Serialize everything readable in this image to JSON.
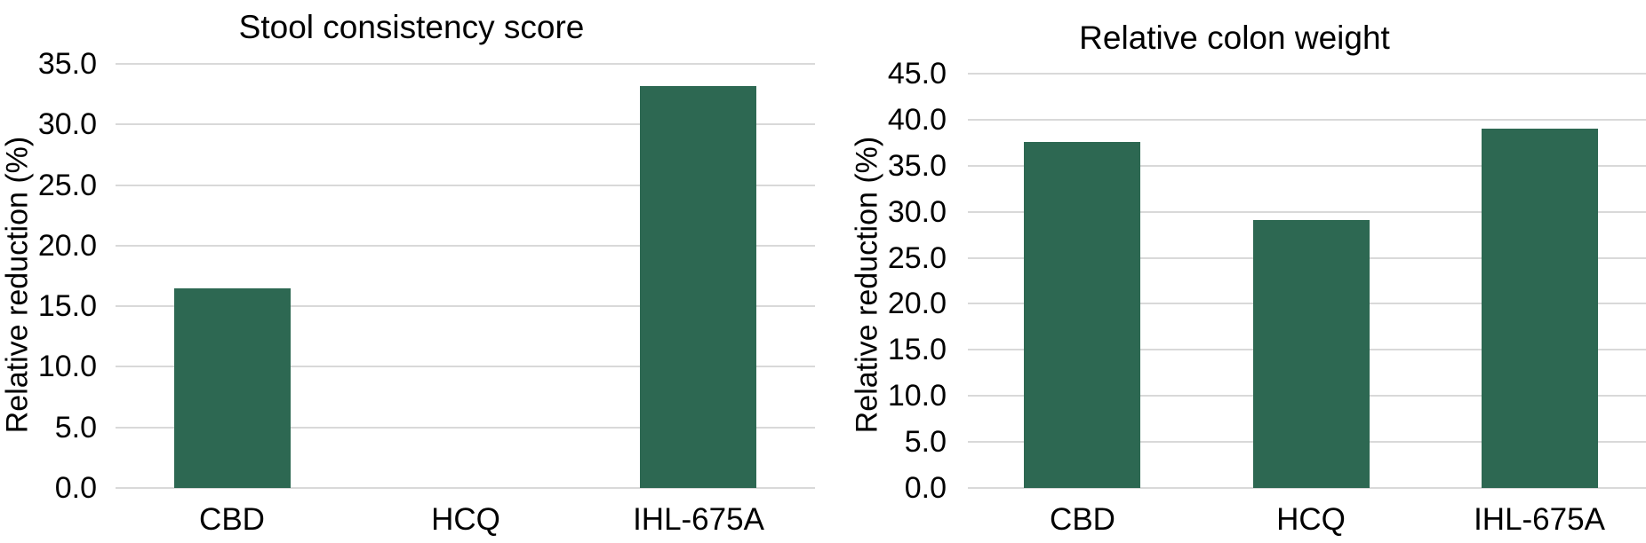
{
  "figure": {
    "background_color": "#ffffff",
    "bar_color": "#2d6852",
    "gridline_color": "#d9d9d9",
    "text_color": "#000000"
  },
  "chart_data": [
    {
      "type": "bar",
      "title": "Stool consistency score",
      "ylabel": "Relative reduction (%)",
      "xlabel": "",
      "categories": [
        "CBD",
        "HCQ",
        "IHL-675A"
      ],
      "values": [
        16.5,
        0.0,
        33.2
      ],
      "ylim": [
        0,
        35
      ],
      "ytick_step": 5,
      "ytick_decimals": 1,
      "grid": "horizontal-only",
      "legend": "none"
    },
    {
      "type": "bar",
      "title": "Relative colon weight",
      "ylabel": "Relative reduction (%)",
      "xlabel": "",
      "categories": [
        "CBD",
        "HCQ",
        "IHL-675A"
      ],
      "values": [
        37.6,
        29.1,
        39.0
      ],
      "ylim": [
        0,
        45
      ],
      "ytick_step": 5,
      "ytick_decimals": 1,
      "grid": "horizontal-only",
      "legend": "none"
    }
  ]
}
